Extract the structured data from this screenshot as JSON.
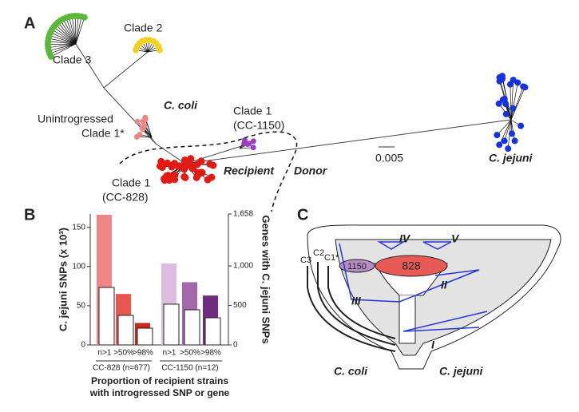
{
  "panel_a": {
    "letter": "A",
    "labels": {
      "clade3": "Clade 3",
      "clade2": "Clade 2",
      "unintrogressed": "Unintrogressed",
      "clade1star": "Clade 1*",
      "ccoli": "C. coli",
      "clade1_1150": "Clade 1",
      "cc1150": "(CC-1150)",
      "clade1_828": "Clade 1",
      "cc828": "(CC-828)",
      "recipient": "Recipient",
      "donor": "Donor",
      "scale": "0.005",
      "cjejuni": "C. jejuni"
    }
  },
  "chart_data": {
    "type": "bar",
    "letter": "B",
    "categories": [
      "n>1",
      ">50%",
      ">98%",
      "n>1",
      ">50%",
      ">98%"
    ],
    "groups": [
      "CC-828 (n=677)",
      "CC-1150 (n=12)"
    ],
    "series": [
      {
        "color": [
          "#f08585",
          "#e8564f",
          "#c9281c",
          "#dcbde0",
          "#a467ab",
          "#6e2c82"
        ],
        "values": [
          166,
          65,
          28,
          104,
          80,
          63
        ]
      },
      {
        "color": "#ffffff",
        "axis": "y2",
        "values": [
          728,
          374,
          212,
          516,
          445,
          344
        ]
      }
    ],
    "ylabel": "C. jejuni SNPs (x 10³)",
    "y2label": "Genes with C. jejuni SNPs",
    "xlabel": [
      "Proportion of recipient strains",
      "with introgressed SNP or gene"
    ],
    "ylim": [
      0,
      167
    ],
    "yticks": [
      0,
      50,
      100,
      150
    ],
    "y2lim": [
      0,
      1658
    ],
    "y2ticks": [
      0,
      500,
      {
        "value": 1000,
        "label": "1,000"
      },
      {
        "value": 1658,
        "label": "1,658"
      }
    ]
  },
  "panel_c": {
    "letter": "C",
    "labels": {
      "iv": "IV",
      "v": "V",
      "n1150": "1150",
      "n828": "828",
      "c3": "C3",
      "c2": "C2",
      "c1": "C1*",
      "iii": "III",
      "ii": "II",
      "i": "I",
      "ccoli": "C. coli",
      "cjejuni": "C. jejuni"
    }
  }
}
